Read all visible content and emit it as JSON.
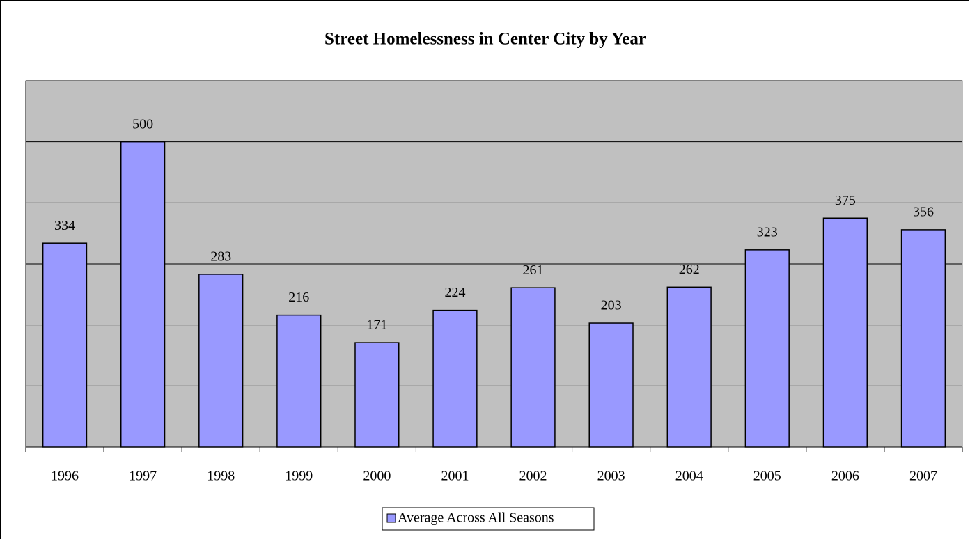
{
  "chart_data": {
    "type": "bar",
    "title": "Street Homelessness in Center City by Year",
    "categories": [
      "1996",
      "1997",
      "1998",
      "1999",
      "2000",
      "2001",
      "2002",
      "2003",
      "2004",
      "2005",
      "2006",
      "2007"
    ],
    "series": [
      {
        "name": "Average Across All Seasons",
        "color": "#9999ff",
        "values": [
          334,
          500,
          283,
          216,
          171,
          224,
          261,
          203,
          262,
          323,
          375,
          356
        ]
      }
    ],
    "ylim": [
      0,
      600
    ],
    "yticks": [
      0,
      100,
      200,
      300,
      400,
      500,
      600
    ],
    "grid": true,
    "plot_background": "#c0c0c0",
    "legend": "bottom"
  }
}
